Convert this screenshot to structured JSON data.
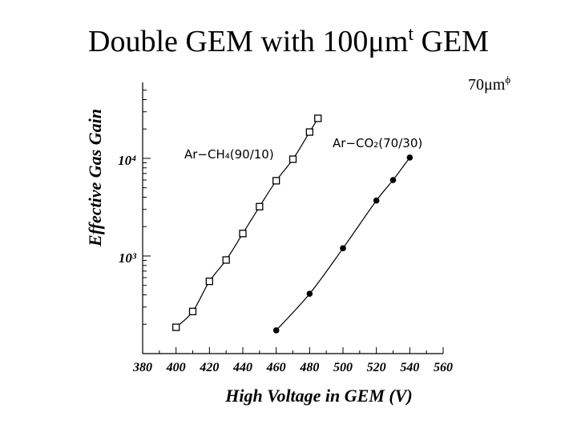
{
  "chart_data": {
    "type": "line",
    "title": [
      "Double GEM with 100μm",
      "t",
      " GEM"
    ],
    "subtitle": [
      "70μm",
      "ϕ"
    ],
    "x_label": "High Voltage in GEM (V)",
    "y_label": "Effective Gas Gain",
    "log_y": true,
    "xlim": [
      380,
      560
    ],
    "xticks": [
      380,
      400,
      420,
      440,
      460,
      480,
      500,
      520,
      540,
      560
    ],
    "xminor": [
      390,
      410,
      430,
      450,
      470,
      490,
      510,
      530,
      550
    ],
    "ylim": [
      100,
      60000
    ],
    "yticks": [
      {
        "value": 1000,
        "label": "10³"
      },
      {
        "value": 10000,
        "label": "10⁴"
      }
    ],
    "yminor": [
      200,
      300,
      400,
      500,
      600,
      700,
      800,
      900,
      2000,
      3000,
      4000,
      5000,
      6000,
      7000,
      8000,
      9000,
      20000,
      30000,
      40000,
      50000
    ],
    "series": [
      {
        "name": "Ar−CH₄(90/10)",
        "color": "#000000",
        "marker": "square",
        "x": [
          400,
          410,
          420,
          430,
          440,
          450,
          460,
          470,
          480,
          485
        ],
        "values": [
          186,
          270,
          550,
          910,
          1700,
          3200,
          5900,
          9800,
          18600,
          25700
        ]
      },
      {
        "name": "Ar−CO₂(70/30)",
        "color": "#000000",
        "marker": "circle",
        "x": [
          460,
          480,
          500,
          520,
          530,
          540
        ],
        "values": [
          173,
          410,
          1200,
          3700,
          6000,
          10200
        ]
      }
    ]
  }
}
